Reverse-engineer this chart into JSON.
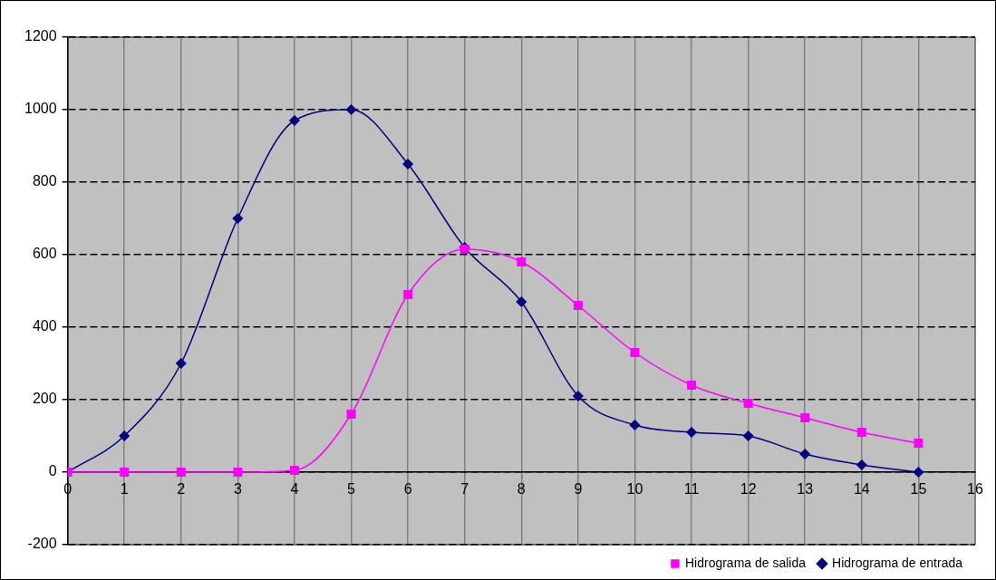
{
  "chart_data": {
    "type": "line",
    "x": [
      0,
      1,
      2,
      3,
      4,
      5,
      6,
      7,
      8,
      9,
      10,
      11,
      12,
      13,
      14,
      15
    ],
    "series": [
      {
        "name": "Hidrograma de entrada",
        "color": "#000080",
        "marker": "diamond",
        "values": [
          0,
          100,
          300,
          700,
          970,
          1000,
          850,
          620,
          470,
          210,
          130,
          110,
          100,
          50,
          20,
          0
        ]
      },
      {
        "name": "Hidrograma de salida",
        "color": "#ff00ff",
        "marker": "square",
        "values": [
          0,
          0,
          0,
          0,
          5,
          160,
          490,
          615,
          580,
          460,
          330,
          240,
          190,
          150,
          110,
          80
        ]
      }
    ],
    "xlim": [
      0,
      16
    ],
    "xticks": [
      0,
      1,
      2,
      3,
      4,
      5,
      6,
      7,
      8,
      9,
      10,
      11,
      12,
      13,
      14,
      15,
      16
    ],
    "ylim": [
      -200,
      1200
    ],
    "yticks": [
      -200,
      0,
      200,
      400,
      600,
      800,
      1000,
      1200
    ],
    "grid": true,
    "legend": "bottom"
  }
}
